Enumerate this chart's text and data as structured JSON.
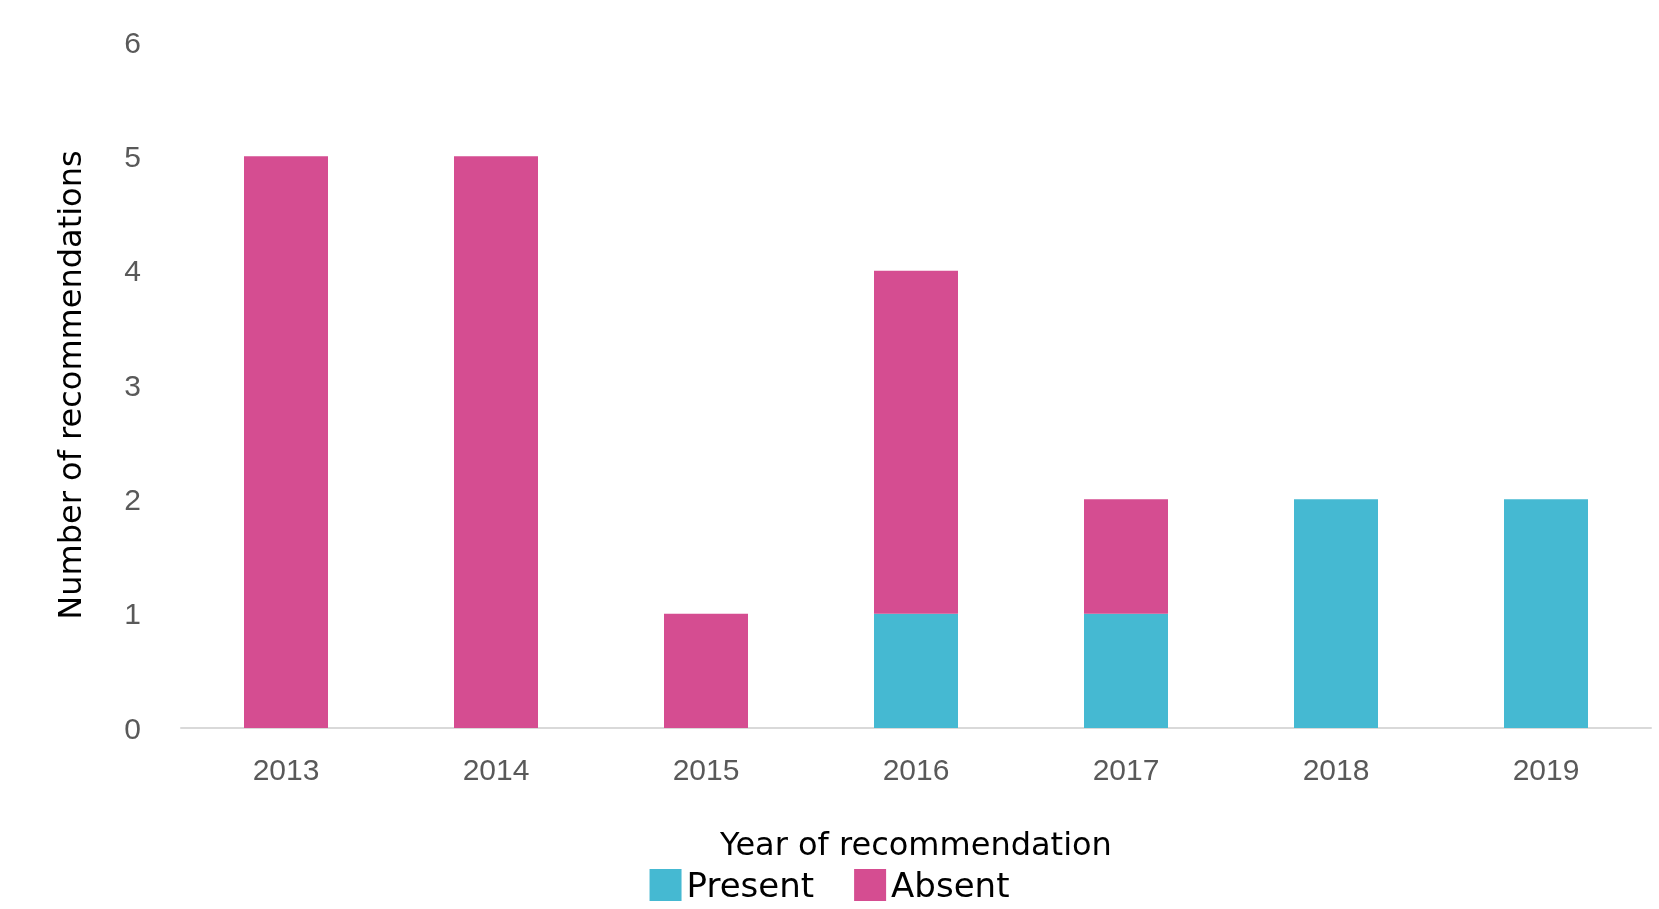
{
  "chart_data": {
    "type": "bar",
    "stacked": true,
    "xlabel": "Year of recommendation",
    "ylabel": "Number of recommendations",
    "categories": [
      "2013",
      "2014",
      "2015",
      "2016",
      "2017",
      "2018",
      "2019"
    ],
    "series": [
      {
        "name": "Present",
        "color": "#45b9d2",
        "values": [
          0,
          0,
          0,
          1,
          1,
          2,
          2
        ]
      },
      {
        "name": "Absent",
        "color": "#d54d91",
        "values": [
          5,
          5,
          1,
          3,
          1,
          0,
          0
        ]
      }
    ],
    "ylim": [
      0,
      6
    ],
    "yticks": [
      0,
      1,
      2,
      3,
      4,
      5,
      6
    ],
    "grid": false,
    "legend": "bottom"
  }
}
